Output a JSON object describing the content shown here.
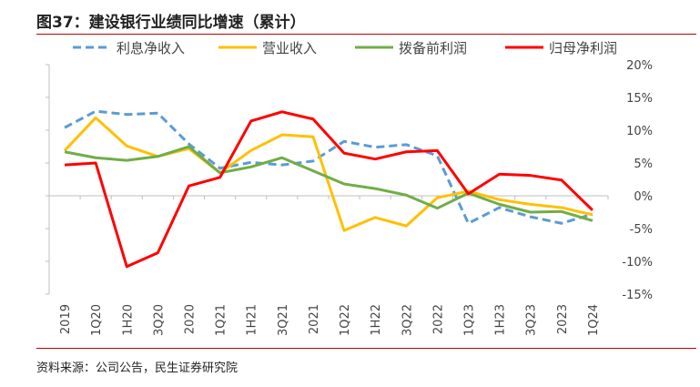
{
  "title": "图37：建设银行业绩同比增速（累计）",
  "source": "资料来源：公司公告，民生证券研究院",
  "chart_data": {
    "type": "line",
    "title": "图37：建设银行业绩同比增速（累计）",
    "xlabel": "",
    "ylabel": "",
    "categories": [
      "2019",
      "1Q20",
      "1H20",
      "3Q20",
      "2020",
      "1Q21",
      "1H21",
      "3Q21",
      "2021",
      "1Q22",
      "1H22",
      "3Q22",
      "2022",
      "1Q23",
      "1H23",
      "3Q23",
      "2023",
      "1Q24"
    ],
    "ylim": [
      -15,
      20
    ],
    "yticks": [
      20,
      15,
      10,
      5,
      0,
      -5,
      -10,
      -15
    ],
    "ytick_labels": [
      "20%",
      "15%",
      "10%",
      "5%",
      "0%",
      "-5%",
      "-10%",
      "-15%"
    ],
    "legend_position": "top",
    "grid": false,
    "series": [
      {
        "name": "利息净收入",
        "color": "#5b9bd5",
        "dash": true,
        "values": [
          10.4,
          12.9,
          12.4,
          12.6,
          7.9,
          4.2,
          5.1,
          4.7,
          5.3,
          8.3,
          7.4,
          7.8,
          6.1,
          -4.2,
          -1.8,
          -3.2,
          -4.2,
          -2.8
        ]
      },
      {
        "name": "营业收入",
        "color": "#ffc000",
        "dash": false,
        "values": [
          6.9,
          11.9,
          7.6,
          6.0,
          7.2,
          3.5,
          6.9,
          9.3,
          9.0,
          -5.3,
          -3.3,
          -4.6,
          -0.3,
          0.7,
          -0.6,
          -1.3,
          -1.8,
          -2.9
        ]
      },
      {
        "name": "拨备前利润",
        "color": "#70ad47",
        "dash": false,
        "values": [
          6.7,
          5.8,
          5.4,
          6.0,
          7.5,
          3.5,
          4.4,
          5.8,
          3.8,
          1.8,
          1.1,
          0.1,
          -1.9,
          0.4,
          -1.3,
          -2.5,
          -2.4,
          -3.8
        ]
      },
      {
        "name": "归母净利润",
        "color": "#ff0000",
        "dash": false,
        "values": [
          4.7,
          5.0,
          -10.8,
          -8.7,
          1.5,
          2.8,
          11.4,
          12.8,
          11.7,
          6.5,
          5.6,
          6.7,
          6.9,
          0.3,
          3.3,
          3.1,
          2.4,
          -2.2
        ]
      }
    ]
  }
}
